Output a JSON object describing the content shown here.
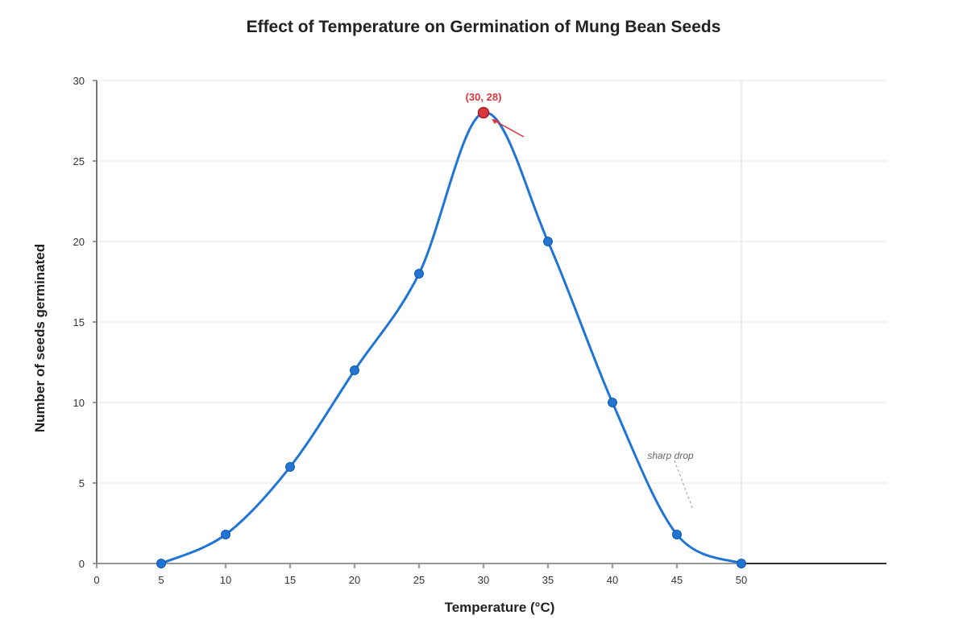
{
  "chart_data": {
    "type": "line",
    "title": "Effect of Temperature on Germination of Mung Bean Seeds",
    "xlabel": "Temperature (°C)",
    "ylabel": "Number of seeds germinated",
    "xlim": [
      0,
      61.25
    ],
    "ylim": [
      0,
      30
    ],
    "x_ticks": [
      0,
      5,
      10,
      15,
      20,
      25,
      30,
      35,
      40,
      45,
      50
    ],
    "y_ticks": [
      0,
      5,
      10,
      15,
      20,
      25,
      30
    ],
    "grid": {
      "horizontal": true,
      "vertical": false
    },
    "series": [
      {
        "x": [
          5,
          10,
          15,
          20,
          25,
          30,
          35,
          40,
          45,
          50
        ],
        "y": [
          0,
          1.8,
          6,
          12,
          18,
          28,
          20,
          10,
          1.8,
          0
        ],
        "color": "#1f74d4",
        "smooth": true
      }
    ],
    "annotations": [
      {
        "text": "(30, 28)",
        "x": 30,
        "y": 28,
        "color": "#d9363e",
        "role": "peak"
      },
      {
        "text": "sharp drop",
        "x": 44.5,
        "y": 7,
        "color": "#666666",
        "role": "note"
      }
    ]
  },
  "colors": {
    "line": "#1f74d4",
    "marker": "#1f74d4",
    "peak": "#d9363e",
    "grid": "#e6e6e6",
    "axis": "#777777"
  }
}
